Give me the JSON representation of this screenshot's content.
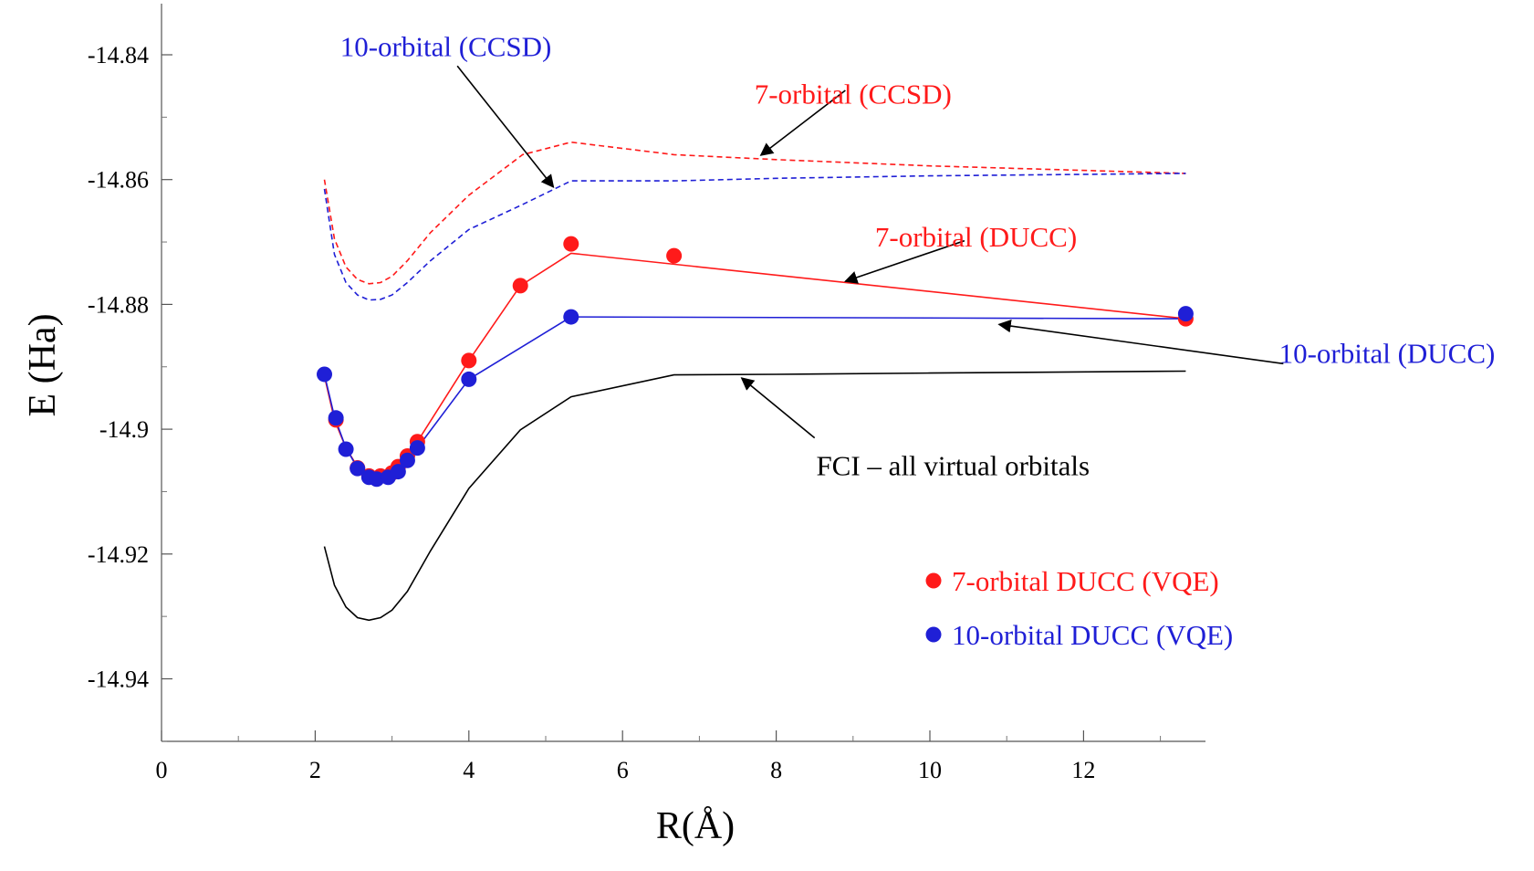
{
  "chart_data": {
    "type": "line",
    "title": "",
    "xlabel": "R(Å)",
    "ylabel": "E (Ha)",
    "xlim": [
      0,
      13.6
    ],
    "ylim": [
      -14.95,
      -14.832
    ],
    "x_ticks": [
      0,
      2,
      4,
      6,
      8,
      10,
      12
    ],
    "x_tick_labels": [
      "0",
      "2",
      "4",
      "6",
      "8",
      "10",
      "12"
    ],
    "y_ticks": [
      -14.84,
      -14.86,
      -14.88,
      -14.9,
      -14.92,
      -14.94
    ],
    "y_tick_labels": [
      "-14.84",
      "-14.86",
      "-14.88",
      "-14.9",
      "-14.92",
      "-14.94"
    ],
    "grid": false,
    "legend_position": "bottom-right",
    "colors": {
      "red": "#ff1a1a",
      "blue": "#1f1fd6",
      "black": "#000000"
    },
    "series": [
      {
        "key": "ccsd7",
        "style": "dashed",
        "color": "#ff1a1a",
        "x": [
          2.12,
          2.25,
          2.4,
          2.55,
          2.7,
          2.85,
          3.0,
          3.2,
          3.5,
          4.0,
          4.7,
          5.33,
          6.67,
          8.0,
          10.0,
          13.33
        ],
        "y": [
          -14.86,
          -14.8695,
          -14.874,
          -14.876,
          -14.8767,
          -14.8765,
          -14.8755,
          -14.873,
          -14.8685,
          -14.8625,
          -14.856,
          -14.854,
          -14.856,
          -14.8568,
          -14.8578,
          -14.859
        ]
      },
      {
        "key": "ccsd10",
        "style": "dashed",
        "color": "#1f1fd6",
        "x": [
          2.12,
          2.25,
          2.4,
          2.55,
          2.7,
          2.85,
          3.0,
          3.2,
          3.5,
          4.0,
          4.7,
          5.33,
          6.67,
          8.0,
          10.0,
          13.33
        ],
        "y": [
          -14.8615,
          -14.872,
          -14.8765,
          -14.8785,
          -14.8793,
          -14.8792,
          -14.8785,
          -14.8765,
          -14.873,
          -14.868,
          -14.864,
          -14.8602,
          -14.8602,
          -14.8598,
          -14.8594,
          -14.859
        ]
      },
      {
        "key": "ducc7",
        "style": "solid",
        "color": "#ff1a1a",
        "x": [
          2.12,
          2.25,
          2.4,
          2.55,
          2.7,
          2.85,
          3.0,
          3.1,
          3.2,
          3.33,
          4.0,
          4.67,
          5.33,
          13.33
        ],
        "y": [
          -14.8915,
          -14.8985,
          -14.903,
          -14.906,
          -14.9075,
          -14.9075,
          -14.9068,
          -14.9058,
          -14.9042,
          -14.902,
          -14.889,
          -14.877,
          -14.8718,
          -14.8823
        ]
      },
      {
        "key": "ducc10",
        "style": "solid",
        "color": "#1f1fd6",
        "x": [
          2.12,
          2.25,
          2.4,
          2.55,
          2.7,
          2.8,
          2.95,
          3.1,
          3.2,
          3.33,
          4.0,
          5.33,
          13.33
        ],
        "y": [
          -14.8912,
          -14.898,
          -14.903,
          -14.9062,
          -14.9077,
          -14.908,
          -14.9077,
          -14.9068,
          -14.905,
          -14.903,
          -14.892,
          -14.882,
          -14.8823
        ]
      },
      {
        "key": "fci",
        "style": "solid",
        "color": "#000000",
        "x": [
          2.12,
          2.25,
          2.4,
          2.55,
          2.7,
          2.85,
          3.0,
          3.2,
          3.5,
          4.0,
          4.67,
          5.33,
          6.67,
          8.0,
          10.0,
          13.33
        ],
        "y": [
          -14.9188,
          -14.925,
          -14.9285,
          -14.9302,
          -14.9306,
          -14.9302,
          -14.929,
          -14.926,
          -14.9195,
          -14.9095,
          -14.9001,
          -14.8948,
          -14.8913,
          -14.8912,
          -14.891,
          -14.8907
        ]
      },
      {
        "key": "vqe7",
        "style": "markers",
        "color": "#ff1a1a",
        "x": [
          2.27,
          2.55,
          2.7,
          2.85,
          3.0,
          3.08,
          3.2,
          3.33,
          4.0,
          4.67,
          5.33,
          6.67,
          13.33
        ],
        "y": [
          -14.8985,
          -14.9062,
          -14.9075,
          -14.9075,
          -14.907,
          -14.906,
          -14.9043,
          -14.902,
          -14.889,
          -14.877,
          -14.8703,
          -14.8722,
          -14.8823
        ]
      },
      {
        "key": "vqe10",
        "style": "markers",
        "color": "#1f1fd6",
        "x": [
          2.12,
          2.27,
          2.4,
          2.55,
          2.7,
          2.8,
          2.95,
          3.08,
          3.2,
          3.33,
          4.0,
          5.33,
          13.33
        ],
        "y": [
          -14.8912,
          -14.8982,
          -14.9032,
          -14.9063,
          -14.9077,
          -14.908,
          -14.9077,
          -14.9068,
          -14.905,
          -14.903,
          -14.892,
          -14.882,
          -14.8815
        ]
      }
    ],
    "annotations": [
      {
        "key": "a_ccsd10",
        "text": "10-orbital (CCSD)",
        "color": "#1f1fd6",
        "text_x": 3.7,
        "text_y": -14.8402,
        "arrow_from": [
          3.85,
          -14.8418
        ],
        "arrow_to": [
          5.1,
          -14.8612
        ]
      },
      {
        "key": "a_ccsd7",
        "text": "7-orbital (CCSD)",
        "color": "#ff1a1a",
        "text_x": 9.0,
        "text_y": -14.8478,
        "arrow_from": [
          8.9,
          -14.8457
        ],
        "arrow_to": [
          7.8,
          -14.8561
        ]
      },
      {
        "key": "a_ducc7",
        "text": "7-orbital (DUCC)",
        "color": "#ff1a1a",
        "text_x": 10.6,
        "text_y": -14.8707,
        "arrow_from": [
          10.45,
          -14.8698
        ],
        "arrow_to": [
          8.9,
          -14.8763
        ]
      },
      {
        "key": "a_ducc10",
        "text": "10-orbital (DUCC)",
        "color": "#1f1fd6",
        "text_x": 15.95,
        "text_y": -14.8894,
        "arrow_from": [
          14.6,
          -14.8895
        ],
        "arrow_to": [
          10.9,
          -14.8832
        ]
      },
      {
        "key": "a_fci",
        "text": "FCI – all virtual orbitals",
        "color": "#000000",
        "text_x": 10.3,
        "text_y": -14.9074,
        "arrow_from": [
          8.5,
          -14.9014
        ],
        "arrow_to": [
          7.55,
          -14.8918
        ]
      }
    ],
    "legend": [
      {
        "key": "vqe7",
        "text": "7-orbital DUCC (VQE)",
        "color": "#ff1a1a"
      },
      {
        "key": "vqe10",
        "text": "10-orbital DUCC (VQE)",
        "color": "#1f1fd6"
      }
    ]
  }
}
